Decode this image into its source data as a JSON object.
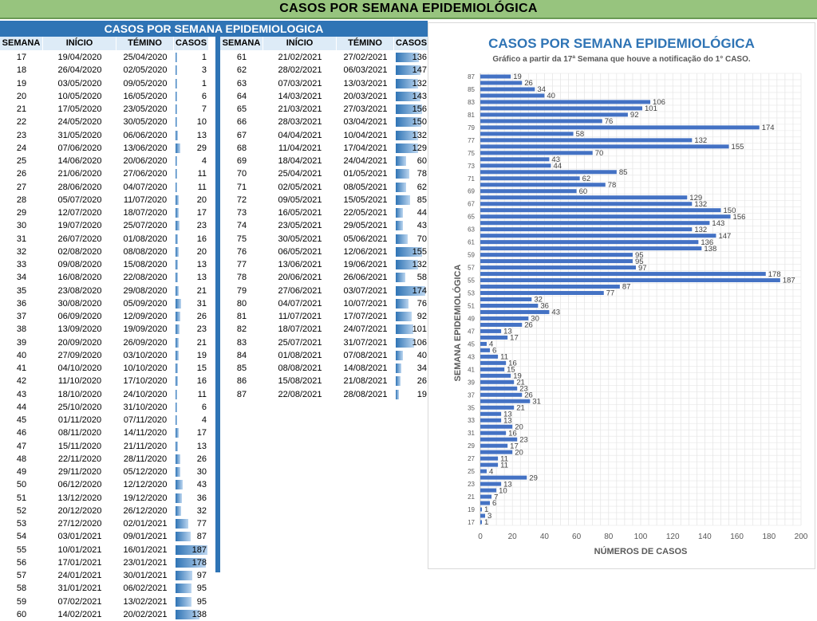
{
  "banner_title": "CASOS POR SEMANA EPIDEMIOLÓGICA",
  "table": {
    "title": "CASOS POR SEMANA EPIDEMIOLOGICA",
    "headers": [
      "SEMANA",
      "INÍCIO",
      "TÉMINO",
      "CASOS"
    ],
    "max_casos": 187,
    "left_rows": [
      {
        "semana": "17",
        "inicio": "19/04/2020",
        "termino": "25/04/2020",
        "casos": 1
      },
      {
        "semana": "18",
        "inicio": "26/04/2020",
        "termino": "02/05/2020",
        "casos": 3
      },
      {
        "semana": "19",
        "inicio": "03/05/2020",
        "termino": "09/05/2020",
        "casos": 1
      },
      {
        "semana": "20",
        "inicio": "10/05/2020",
        "termino": "16/05/2020",
        "casos": 6
      },
      {
        "semana": "21",
        "inicio": "17/05/2020",
        "termino": "23/05/2020",
        "casos": 7
      },
      {
        "semana": "22",
        "inicio": "24/05/2020",
        "termino": "30/05/2020",
        "casos": 10
      },
      {
        "semana": "23",
        "inicio": "31/05/2020",
        "termino": "06/06/2020",
        "casos": 13
      },
      {
        "semana": "24",
        "inicio": "07/06/2020",
        "termino": "13/06/2020",
        "casos": 29
      },
      {
        "semana": "25",
        "inicio": "14/06/2020",
        "termino": "20/06/2020",
        "casos": 4
      },
      {
        "semana": "26",
        "inicio": "21/06/2020",
        "termino": "27/06/2020",
        "casos": 11
      },
      {
        "semana": "27",
        "inicio": "28/06/2020",
        "termino": "04/07/2020",
        "casos": 11
      },
      {
        "semana": "28",
        "inicio": "05/07/2020",
        "termino": "11/07/2020",
        "casos": 20
      },
      {
        "semana": "29",
        "inicio": "12/07/2020",
        "termino": "18/07/2020",
        "casos": 17
      },
      {
        "semana": "30",
        "inicio": "19/07/2020",
        "termino": "25/07/2020",
        "casos": 23
      },
      {
        "semana": "31",
        "inicio": "26/07/2020",
        "termino": "01/08/2020",
        "casos": 16
      },
      {
        "semana": "32",
        "inicio": "02/08/2020",
        "termino": "08/08/2020",
        "casos": 20
      },
      {
        "semana": "33",
        "inicio": "09/08/2020",
        "termino": "15/08/2020",
        "casos": 13
      },
      {
        "semana": "34",
        "inicio": "16/08/2020",
        "termino": "22/08/2020",
        "casos": 13
      },
      {
        "semana": "35",
        "inicio": "23/08/2020",
        "termino": "29/08/2020",
        "casos": 21
      },
      {
        "semana": "36",
        "inicio": "30/08/2020",
        "termino": "05/09/2020",
        "casos": 31
      },
      {
        "semana": "37",
        "inicio": "06/09/2020",
        "termino": "12/09/2020",
        "casos": 26
      },
      {
        "semana": "38",
        "inicio": "13/09/2020",
        "termino": "19/09/2020",
        "casos": 23
      },
      {
        "semana": "39",
        "inicio": "20/09/2020",
        "termino": "26/09/2020",
        "casos": 21
      },
      {
        "semana": "40",
        "inicio": "27/09/2020",
        "termino": "03/10/2020",
        "casos": 19
      },
      {
        "semana": "41",
        "inicio": "04/10/2020",
        "termino": "10/10/2020",
        "casos": 15
      },
      {
        "semana": "42",
        "inicio": "11/10/2020",
        "termino": "17/10/2020",
        "casos": 16
      },
      {
        "semana": "43",
        "inicio": "18/10/2020",
        "termino": "24/10/2020",
        "casos": 11
      },
      {
        "semana": "44",
        "inicio": "25/10/2020",
        "termino": "31/10/2020",
        "casos": 6
      },
      {
        "semana": "45",
        "inicio": "01/11/2020",
        "termino": "07/11/2020",
        "casos": 4
      },
      {
        "semana": "46",
        "inicio": "08/11/2020",
        "termino": "14/11/2020",
        "casos": 17
      },
      {
        "semana": "47",
        "inicio": "15/11/2020",
        "termino": "21/11/2020",
        "casos": 13
      },
      {
        "semana": "48",
        "inicio": "22/11/2020",
        "termino": "28/11/2020",
        "casos": 26
      },
      {
        "semana": "49",
        "inicio": "29/11/2020",
        "termino": "05/12/2020",
        "casos": 30
      },
      {
        "semana": "50",
        "inicio": "06/12/2020",
        "termino": "12/12/2020",
        "casos": 43
      },
      {
        "semana": "51",
        "inicio": "13/12/2020",
        "termino": "19/12/2020",
        "casos": 36
      },
      {
        "semana": "52",
        "inicio": "20/12/2020",
        "termino": "26/12/2020",
        "casos": 32
      },
      {
        "semana": "53",
        "inicio": "27/12/2020",
        "termino": "02/01/2021",
        "casos": 77
      },
      {
        "semana": "54",
        "inicio": "03/01/2021",
        "termino": "09/01/2021",
        "casos": 87
      },
      {
        "semana": "55",
        "inicio": "10/01/2021",
        "termino": "16/01/2021",
        "casos": 187
      },
      {
        "semana": "56",
        "inicio": "17/01/2021",
        "termino": "23/01/2021",
        "casos": 178
      },
      {
        "semana": "57",
        "inicio": "24/01/2021",
        "termino": "30/01/2021",
        "casos": 97
      },
      {
        "semana": "58",
        "inicio": "31/01/2021",
        "termino": "06/02/2021",
        "casos": 95
      },
      {
        "semana": "59",
        "inicio": "07/02/2021",
        "termino": "13/02/2021",
        "casos": 95
      },
      {
        "semana": "60",
        "inicio": "14/02/2021",
        "termino": "20/02/2021",
        "casos": 138
      }
    ],
    "right_rows": [
      {
        "semana": "61",
        "inicio": "21/02/2021",
        "termino": "27/02/2021",
        "casos": 136
      },
      {
        "semana": "62",
        "inicio": "28/02/2021",
        "termino": "06/03/2021",
        "casos": 147
      },
      {
        "semana": "63",
        "inicio": "07/03/2021",
        "termino": "13/03/2021",
        "casos": 132
      },
      {
        "semana": "64",
        "inicio": "14/03/2021",
        "termino": "20/03/2021",
        "casos": 143
      },
      {
        "semana": "65",
        "inicio": "21/03/2021",
        "termino": "27/03/2021",
        "casos": 156
      },
      {
        "semana": "66",
        "inicio": "28/03/2021",
        "termino": "03/04/2021",
        "casos": 150
      },
      {
        "semana": "67",
        "inicio": "04/04/2021",
        "termino": "10/04/2021",
        "casos": 132
      },
      {
        "semana": "68",
        "inicio": "11/04/2021",
        "termino": "17/04/2021",
        "casos": 129
      },
      {
        "semana": "69",
        "inicio": "18/04/2021",
        "termino": "24/04/2021",
        "casos": 60
      },
      {
        "semana": "70",
        "inicio": "25/04/2021",
        "termino": "01/05/2021",
        "casos": 78
      },
      {
        "semana": "71",
        "inicio": "02/05/2021",
        "termino": "08/05/2021",
        "casos": 62
      },
      {
        "semana": "72",
        "inicio": "09/05/2021",
        "termino": "15/05/2021",
        "casos": 85
      },
      {
        "semana": "73",
        "inicio": "16/05/2021",
        "termino": "22/05/2021",
        "casos": 44
      },
      {
        "semana": "74",
        "inicio": "23/05/2021",
        "termino": "29/05/2021",
        "casos": 43
      },
      {
        "semana": "75",
        "inicio": "30/05/2021",
        "termino": "05/06/2021",
        "casos": 70
      },
      {
        "semana": "76",
        "inicio": "06/05/2021",
        "termino": "12/06/2021",
        "casos": 155
      },
      {
        "semana": "77",
        "inicio": "13/06/2021",
        "termino": "19/06/2021",
        "casos": 132
      },
      {
        "semana": "78",
        "inicio": "20/06/2021",
        "termino": "26/06/2021",
        "casos": 58
      },
      {
        "semana": "79",
        "inicio": "27/06/2021",
        "termino": "03/07/2021",
        "casos": 174
      },
      {
        "semana": "80",
        "inicio": "04/07/2021",
        "termino": "10/07/2021",
        "casos": 76
      },
      {
        "semana": "81",
        "inicio": "11/07/2021",
        "termino": "17/07/2021",
        "casos": 92
      },
      {
        "semana": "82",
        "inicio": "18/07/2021",
        "termino": "24/07/2021",
        "casos": 101
      },
      {
        "semana": "83",
        "inicio": "25/07/2021",
        "termino": "31/07/2021",
        "casos": 106
      },
      {
        "semana": "84",
        "inicio": "01/08/2021",
        "termino": "07/08/2021",
        "casos": 40
      },
      {
        "semana": "85",
        "inicio": "08/08/2021",
        "termino": "14/08/2021",
        "casos": 34
      },
      {
        "semana": "86",
        "inicio": "15/08/2021",
        "termino": "21/08/2021",
        "casos": 26
      },
      {
        "semana": "87",
        "inicio": "22/08/2021",
        "termino": "28/08/2021",
        "casos": 19
      }
    ]
  },
  "colors": {
    "accent": "#2f74b5",
    "banner": "#97c47e",
    "header_bg": "#ddebf7",
    "bar": "#4472c4"
  },
  "chart_data": {
    "type": "bar",
    "orientation": "horizontal",
    "title": "CASOS POR SEMANA EPIDEMIOLÓGICA",
    "subtitle": "Gráfico a partir da 17ª Semana que houve a notificação do 1° CASO.",
    "xlabel": "NÚMEROS DE CASOS",
    "ylabel": "SEMANA EPIDEMIOLÓGICA",
    "xlim": [
      0,
      200
    ],
    "xticks": [
      0,
      20,
      40,
      60,
      80,
      100,
      120,
      140,
      160,
      180,
      200
    ],
    "grid": true,
    "categories": [
      "17",
      "18",
      "19",
      "20",
      "21",
      "22",
      "23",
      "24",
      "25",
      "26",
      "27",
      "28",
      "29",
      "30",
      "31",
      "32",
      "33",
      "34",
      "35",
      "36",
      "37",
      "38",
      "39",
      "40",
      "41",
      "42",
      "43",
      "44",
      "45",
      "46",
      "47",
      "48",
      "49",
      "50",
      "51",
      "52",
      "53",
      "54",
      "55",
      "56",
      "57",
      "58",
      "59",
      "60",
      "61",
      "62",
      "63",
      "64",
      "65",
      "66",
      "67",
      "68",
      "69",
      "70",
      "71",
      "72",
      "73",
      "74",
      "75",
      "76",
      "77",
      "78",
      "79",
      "80",
      "81",
      "82",
      "83",
      "84",
      "85",
      "86",
      "87"
    ],
    "values": [
      1,
      3,
      1,
      6,
      7,
      10,
      13,
      29,
      4,
      11,
      11,
      20,
      17,
      23,
      16,
      20,
      13,
      13,
      21,
      31,
      26,
      23,
      21,
      19,
      15,
      16,
      11,
      6,
      4,
      17,
      13,
      26,
      30,
      43,
      36,
      32,
      77,
      87,
      187,
      178,
      97,
      95,
      95,
      138,
      136,
      147,
      132,
      143,
      156,
      150,
      132,
      129,
      60,
      78,
      62,
      85,
      44,
      43,
      70,
      155,
      132,
      58,
      174,
      76,
      92,
      101,
      106,
      40,
      34,
      26,
      19
    ]
  }
}
